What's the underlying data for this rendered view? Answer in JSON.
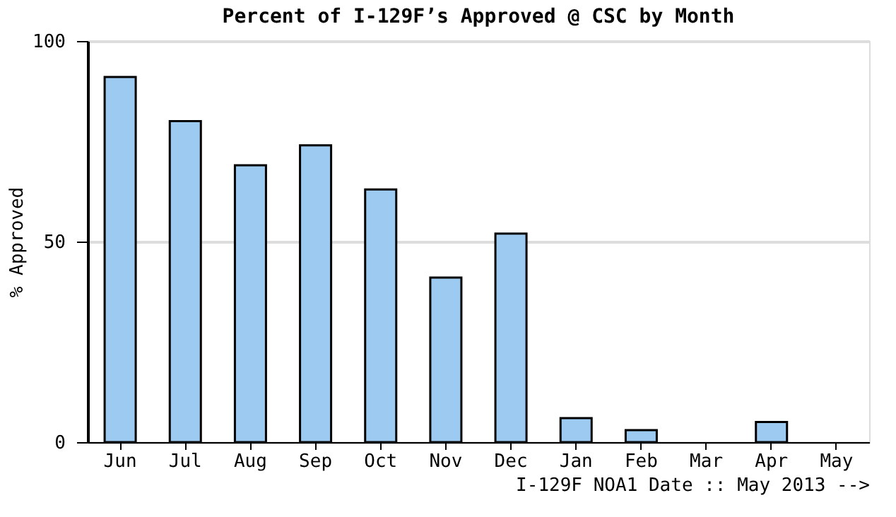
{
  "chart_data": {
    "type": "bar",
    "title": "Percent of I-129F’s Approved @ CSC by Month",
    "xlabel": "I-129F NOA1 Date :: May 2013 -->",
    "ylabel": "% Approved",
    "categories": [
      "Jun",
      "Jul",
      "Aug",
      "Sep",
      "Oct",
      "Nov",
      "Dec",
      "Jan",
      "Feb",
      "Mar",
      "Apr",
      "May"
    ],
    "values": [
      91,
      80,
      69,
      74,
      63,
      41,
      52,
      6,
      3,
      0,
      5,
      0
    ],
    "color": "#9ccaf0",
    "ylim": [
      0,
      100
    ],
    "yticks": [
      0,
      50,
      100
    ],
    "grid": true
  }
}
